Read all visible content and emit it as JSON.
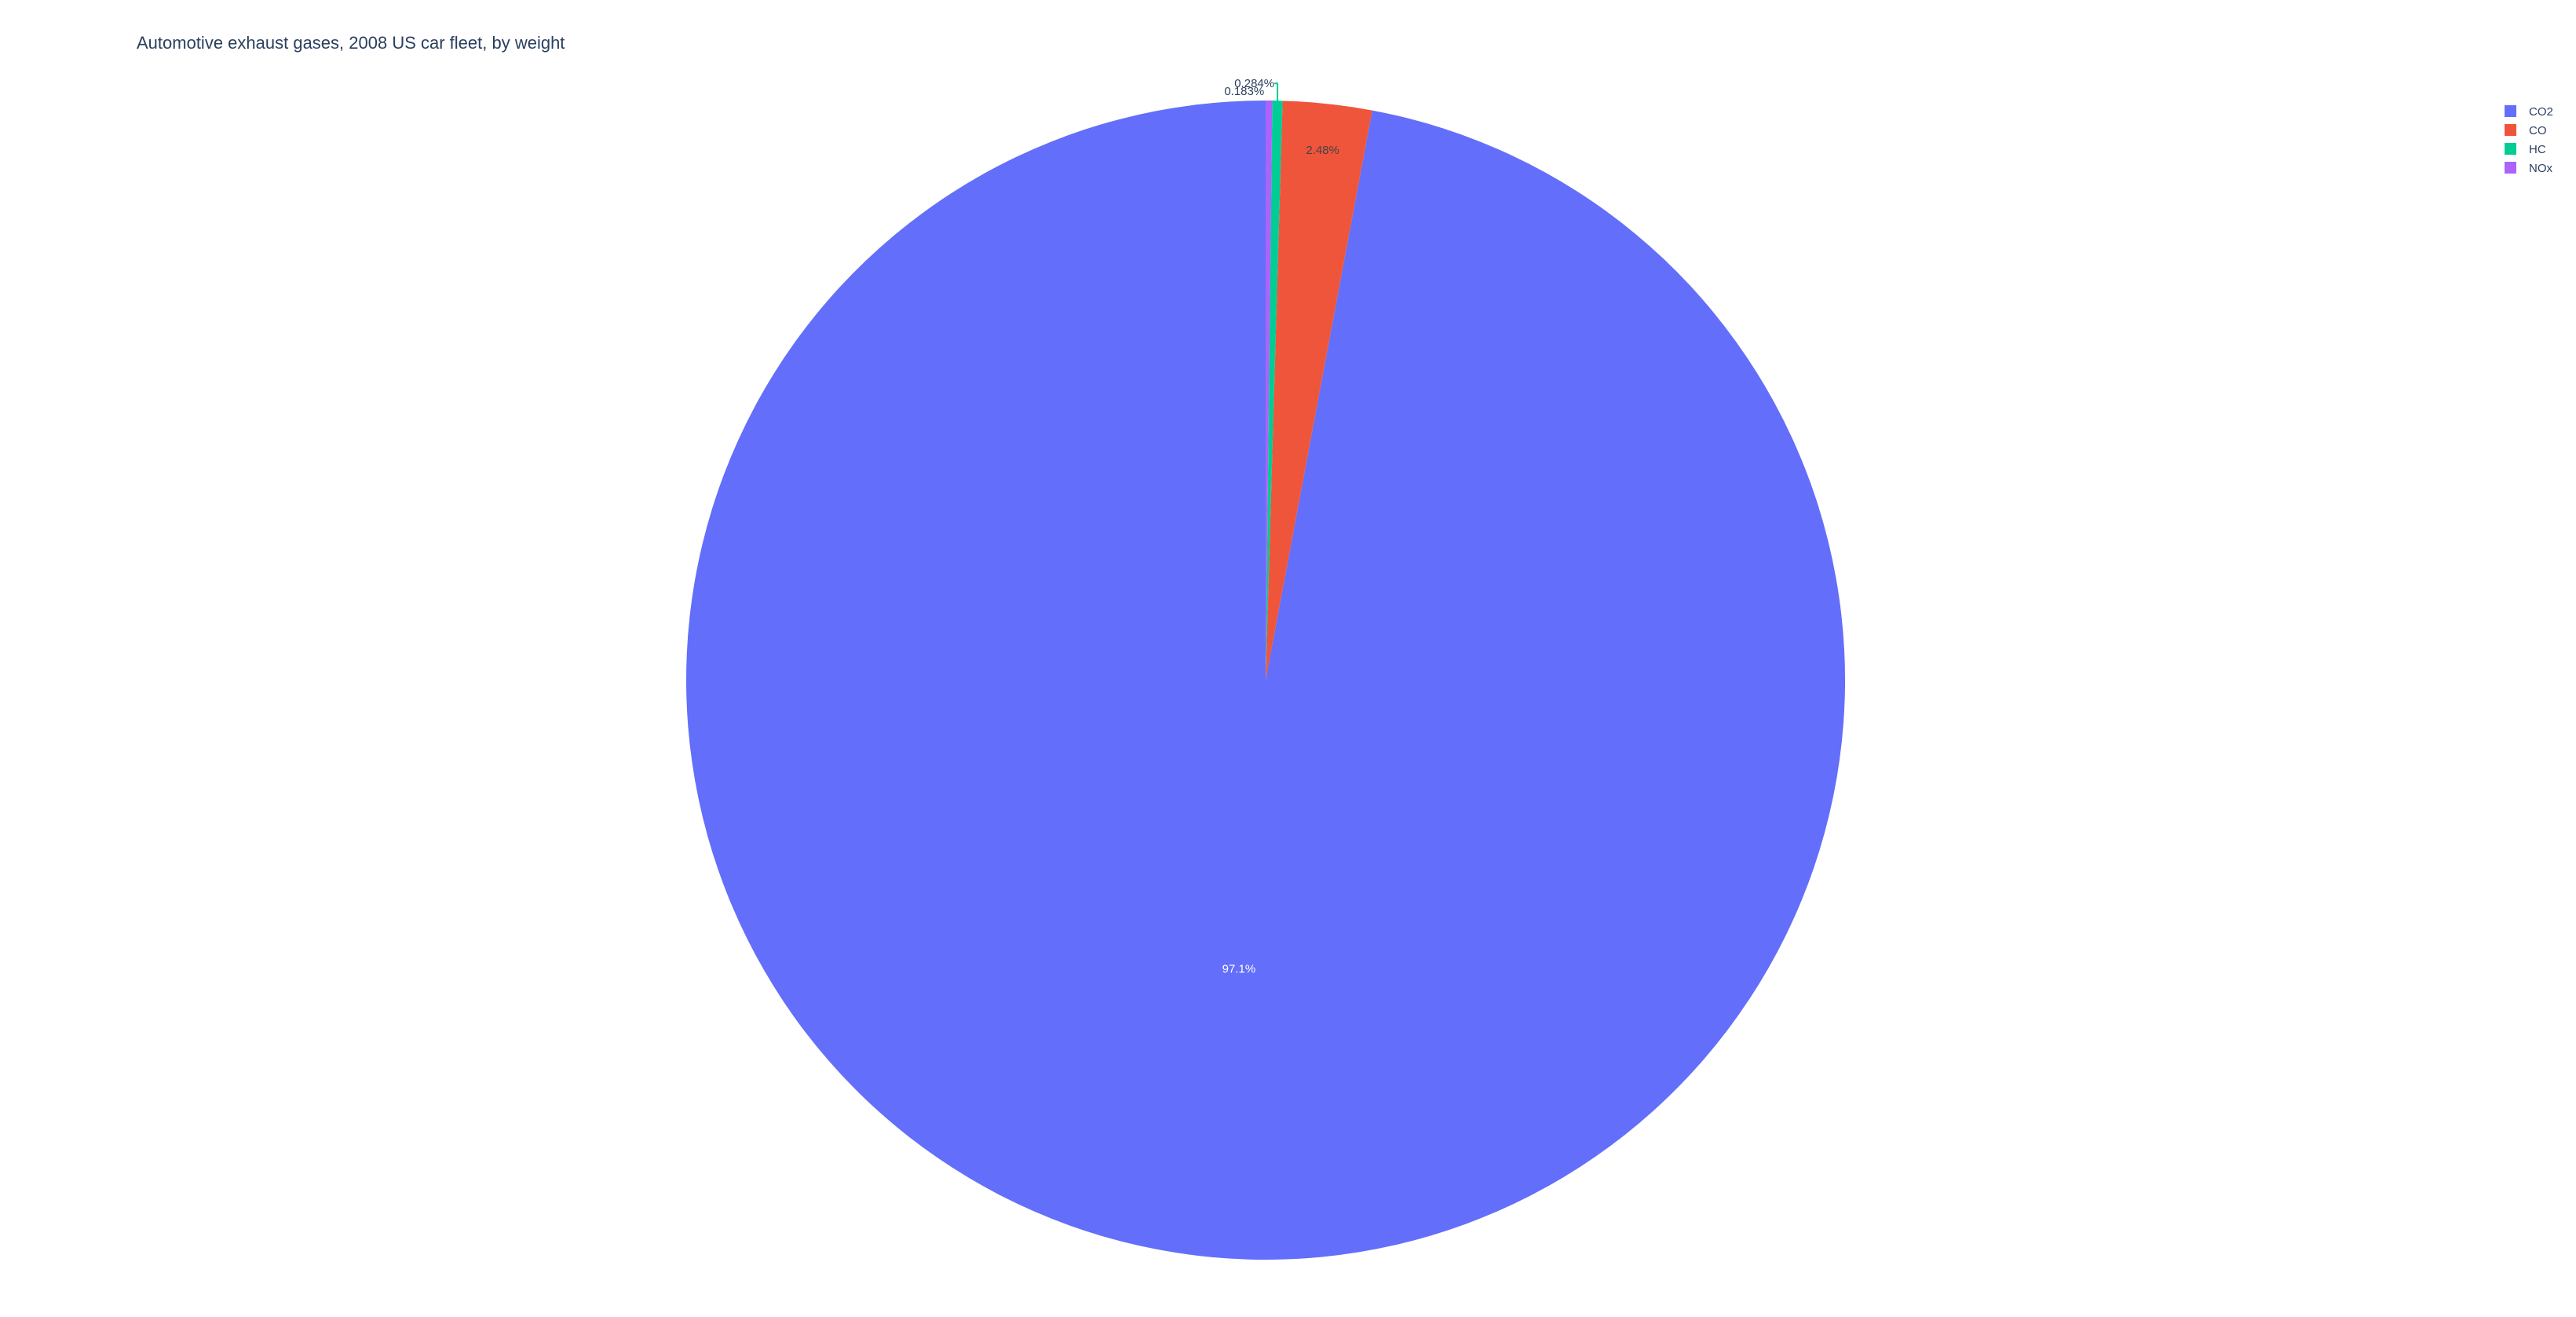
{
  "chart_data": {
    "type": "pie",
    "title": "Automotive exhaust gases, 2008 US car fleet, by weight",
    "categories": [
      "CO2",
      "CO",
      "HC",
      "NOx"
    ],
    "values": [
      97.1,
      2.48,
      0.284,
      0.183
    ],
    "labels": [
      "97.1%",
      "2.48%",
      "0.284%",
      "0.183%"
    ],
    "colors": [
      "#636efa",
      "#EF553B",
      "#00cc96",
      "#ab63fa"
    ],
    "direction": "clockwise",
    "legend": {
      "placement": "top-right",
      "entries": [
        "CO2",
        "CO",
        "HC",
        "NOx"
      ]
    }
  }
}
